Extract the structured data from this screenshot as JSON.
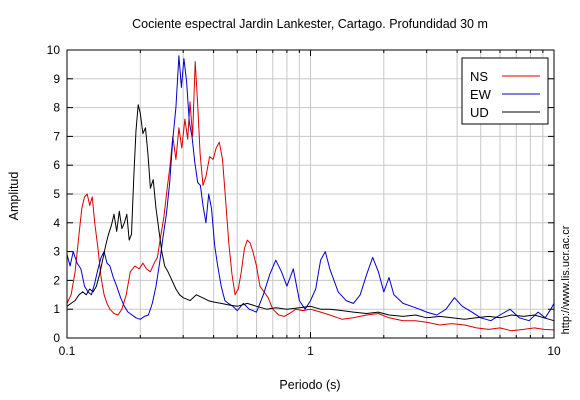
{
  "chart_data": {
    "type": "line",
    "title": "Cociente espectral Jardin Lankester, Cartago. Profundidad 30 m",
    "xlabel": "Periodo (s)",
    "ylabel": "Amplitud",
    "xscale": "log",
    "xlim": [
      0.1,
      10
    ],
    "ylim": [
      0,
      10
    ],
    "x_ticks": [
      {
        "value": 0.1,
        "label": "0.1"
      },
      {
        "value": 1,
        "label": "1"
      },
      {
        "value": 10,
        "label": "10"
      }
    ],
    "y_ticks": [
      {
        "value": 0,
        "label": "0"
      },
      {
        "value": 1,
        "label": "1"
      },
      {
        "value": 2,
        "label": "2"
      },
      {
        "value": 3,
        "label": "3"
      },
      {
        "value": 4,
        "label": "4"
      },
      {
        "value": 5,
        "label": "5"
      },
      {
        "value": 6,
        "label": "6"
      },
      {
        "value": 7,
        "label": "7"
      },
      {
        "value": 8,
        "label": "8"
      },
      {
        "value": 9,
        "label": "9"
      },
      {
        "value": 10,
        "label": "10"
      }
    ],
    "grid": true,
    "legend_position": "top-right",
    "side_note": "http://www.lis.ucr.ac.cr",
    "series": [
      {
        "name": "NS",
        "color": "#dd0000",
        "points": [
          [
            0.1,
            1.2
          ],
          [
            0.104,
            1.5
          ],
          [
            0.108,
            2.3
          ],
          [
            0.112,
            3.6
          ],
          [
            0.115,
            4.5
          ],
          [
            0.118,
            4.9
          ],
          [
            0.121,
            5.0
          ],
          [
            0.124,
            4.6
          ],
          [
            0.127,
            4.9
          ],
          [
            0.13,
            4.0
          ],
          [
            0.134,
            3.1
          ],
          [
            0.138,
            2.1
          ],
          [
            0.142,
            1.5
          ],
          [
            0.146,
            1.2
          ],
          [
            0.15,
            1.0
          ],
          [
            0.156,
            0.85
          ],
          [
            0.162,
            0.8
          ],
          [
            0.168,
            1.0
          ],
          [
            0.175,
            1.5
          ],
          [
            0.182,
            2.3
          ],
          [
            0.19,
            2.5
          ],
          [
            0.198,
            2.4
          ],
          [
            0.205,
            2.6
          ],
          [
            0.212,
            2.4
          ],
          [
            0.22,
            2.3
          ],
          [
            0.228,
            2.6
          ],
          [
            0.235,
            2.8
          ],
          [
            0.242,
            3.5
          ],
          [
            0.25,
            4.2
          ],
          [
            0.258,
            5.2
          ],
          [
            0.265,
            6.0
          ],
          [
            0.272,
            7.0
          ],
          [
            0.28,
            6.2
          ],
          [
            0.288,
            7.3
          ],
          [
            0.296,
            6.6
          ],
          [
            0.305,
            7.6
          ],
          [
            0.313,
            6.9
          ],
          [
            0.32,
            8.2
          ],
          [
            0.328,
            7.0
          ],
          [
            0.336,
            9.6
          ],
          [
            0.344,
            8.1
          ],
          [
            0.352,
            6.4
          ],
          [
            0.362,
            5.3
          ],
          [
            0.372,
            5.6
          ],
          [
            0.385,
            6.3
          ],
          [
            0.398,
            6.2
          ],
          [
            0.41,
            6.6
          ],
          [
            0.422,
            6.8
          ],
          [
            0.435,
            6.2
          ],
          [
            0.448,
            4.8
          ],
          [
            0.462,
            3.3
          ],
          [
            0.476,
            2.2
          ],
          [
            0.49,
            1.5
          ],
          [
            0.505,
            1.7
          ],
          [
            0.52,
            2.3
          ],
          [
            0.535,
            3.1
          ],
          [
            0.55,
            3.4
          ],
          [
            0.565,
            3.3
          ],
          [
            0.58,
            3.0
          ],
          [
            0.6,
            2.5
          ],
          [
            0.62,
            1.8
          ],
          [
            0.645,
            1.6
          ],
          [
            0.67,
            1.4
          ],
          [
            0.7,
            1.0
          ],
          [
            0.74,
            0.8
          ],
          [
            0.78,
            0.75
          ],
          [
            0.82,
            0.85
          ],
          [
            0.87,
            1.0
          ],
          [
            0.93,
            0.95
          ],
          [
            1.0,
            1.0
          ],
          [
            1.1,
            0.9
          ],
          [
            1.2,
            0.8
          ],
          [
            1.35,
            0.65
          ],
          [
            1.5,
            0.7
          ],
          [
            1.7,
            0.8
          ],
          [
            1.9,
            0.85
          ],
          [
            2.1,
            0.7
          ],
          [
            2.4,
            0.6
          ],
          [
            2.7,
            0.6
          ],
          [
            3.0,
            0.55
          ],
          [
            3.4,
            0.45
          ],
          [
            3.8,
            0.5
          ],
          [
            4.3,
            0.45
          ],
          [
            4.8,
            0.35
          ],
          [
            5.4,
            0.3
          ],
          [
            6.0,
            0.35
          ],
          [
            6.7,
            0.25
          ],
          [
            7.5,
            0.3
          ],
          [
            8.3,
            0.35
          ],
          [
            9.1,
            0.3
          ],
          [
            10.0,
            0.28
          ]
        ]
      },
      {
        "name": "EW",
        "color": "#0000cc",
        "points": [
          [
            0.1,
            2.9
          ],
          [
            0.103,
            2.5
          ],
          [
            0.106,
            3.0
          ],
          [
            0.11,
            2.6
          ],
          [
            0.114,
            2.4
          ],
          [
            0.118,
            1.8
          ],
          [
            0.122,
            1.6
          ],
          [
            0.126,
            1.5
          ],
          [
            0.13,
            1.9
          ],
          [
            0.134,
            2.4
          ],
          [
            0.138,
            2.8
          ],
          [
            0.142,
            3.0
          ],
          [
            0.146,
            2.6
          ],
          [
            0.15,
            2.5
          ],
          [
            0.155,
            2.1
          ],
          [
            0.16,
            1.8
          ],
          [
            0.166,
            1.4
          ],
          [
            0.172,
            1.1
          ],
          [
            0.178,
            0.9
          ],
          [
            0.185,
            0.8
          ],
          [
            0.192,
            0.7
          ],
          [
            0.2,
            0.65
          ],
          [
            0.208,
            0.75
          ],
          [
            0.216,
            0.8
          ],
          [
            0.224,
            1.2
          ],
          [
            0.232,
            1.8
          ],
          [
            0.24,
            2.6
          ],
          [
            0.248,
            3.5
          ],
          [
            0.256,
            4.3
          ],
          [
            0.264,
            5.4
          ],
          [
            0.272,
            6.9
          ],
          [
            0.28,
            8.0
          ],
          [
            0.288,
            9.8
          ],
          [
            0.295,
            8.7
          ],
          [
            0.302,
            9.7
          ],
          [
            0.31,
            8.9
          ],
          [
            0.318,
            7.5
          ],
          [
            0.326,
            7.0
          ],
          [
            0.335,
            6.1
          ],
          [
            0.344,
            5.4
          ],
          [
            0.353,
            5.3
          ],
          [
            0.362,
            4.6
          ],
          [
            0.372,
            4.0
          ],
          [
            0.382,
            5.0
          ],
          [
            0.392,
            4.5
          ],
          [
            0.404,
            3.2
          ],
          [
            0.416,
            2.5
          ],
          [
            0.43,
            1.8
          ],
          [
            0.445,
            1.3
          ],
          [
            0.46,
            1.2
          ],
          [
            0.48,
            1.1
          ],
          [
            0.5,
            0.95
          ],
          [
            0.53,
            1.2
          ],
          [
            0.56,
            1.0
          ],
          [
            0.6,
            0.9
          ],
          [
            0.64,
            1.5
          ],
          [
            0.68,
            2.2
          ],
          [
            0.72,
            2.7
          ],
          [
            0.76,
            2.3
          ],
          [
            0.8,
            1.8
          ],
          [
            0.85,
            2.4
          ],
          [
            0.9,
            1.3
          ],
          [
            0.95,
            1.0
          ],
          [
            1.0,
            1.3
          ],
          [
            1.05,
            1.7
          ],
          [
            1.1,
            2.7
          ],
          [
            1.15,
            3.0
          ],
          [
            1.2,
            2.4
          ],
          [
            1.3,
            1.6
          ],
          [
            1.4,
            1.3
          ],
          [
            1.5,
            1.2
          ],
          [
            1.6,
            1.5
          ],
          [
            1.7,
            2.2
          ],
          [
            1.8,
            2.8
          ],
          [
            1.9,
            2.3
          ],
          [
            2.0,
            1.6
          ],
          [
            2.1,
            2.1
          ],
          [
            2.2,
            1.5
          ],
          [
            2.4,
            1.2
          ],
          [
            2.6,
            1.1
          ],
          [
            2.8,
            1.0
          ],
          [
            3.0,
            0.9
          ],
          [
            3.3,
            0.8
          ],
          [
            3.6,
            1.0
          ],
          [
            3.9,
            1.4
          ],
          [
            4.2,
            1.1
          ],
          [
            4.6,
            0.9
          ],
          [
            5.0,
            0.7
          ],
          [
            5.5,
            0.6
          ],
          [
            6.0,
            0.8
          ],
          [
            6.6,
            1.0
          ],
          [
            7.2,
            0.7
          ],
          [
            7.9,
            0.6
          ],
          [
            8.6,
            0.9
          ],
          [
            9.2,
            0.7
          ],
          [
            9.7,
            1.0
          ],
          [
            10.0,
            1.2
          ]
        ]
      },
      {
        "name": "UD",
        "color": "#000000",
        "points": [
          [
            0.1,
            1.1
          ],
          [
            0.104,
            1.2
          ],
          [
            0.108,
            1.3
          ],
          [
            0.112,
            1.5
          ],
          [
            0.116,
            1.6
          ],
          [
            0.12,
            1.5
          ],
          [
            0.124,
            1.7
          ],
          [
            0.128,
            1.6
          ],
          [
            0.132,
            1.8
          ],
          [
            0.136,
            2.2
          ],
          [
            0.14,
            2.7
          ],
          [
            0.144,
            3.2
          ],
          [
            0.148,
            3.6
          ],
          [
            0.152,
            3.9
          ],
          [
            0.156,
            4.3
          ],
          [
            0.16,
            3.7
          ],
          [
            0.164,
            4.4
          ],
          [
            0.168,
            3.8
          ],
          [
            0.172,
            4.0
          ],
          [
            0.176,
            4.3
          ],
          [
            0.18,
            3.4
          ],
          [
            0.184,
            3.6
          ],
          [
            0.188,
            5.6
          ],
          [
            0.192,
            7.2
          ],
          [
            0.196,
            8.1
          ],
          [
            0.2,
            7.8
          ],
          [
            0.205,
            7.1
          ],
          [
            0.21,
            7.3
          ],
          [
            0.215,
            6.4
          ],
          [
            0.22,
            5.2
          ],
          [
            0.226,
            5.5
          ],
          [
            0.232,
            4.5
          ],
          [
            0.238,
            3.8
          ],
          [
            0.245,
            3.0
          ],
          [
            0.252,
            2.5
          ],
          [
            0.26,
            2.3
          ],
          [
            0.27,
            2.0
          ],
          [
            0.28,
            1.7
          ],
          [
            0.29,
            1.5
          ],
          [
            0.3,
            1.4
          ],
          [
            0.32,
            1.3
          ],
          [
            0.34,
            1.5
          ],
          [
            0.36,
            1.4
          ],
          [
            0.38,
            1.3
          ],
          [
            0.4,
            1.25
          ],
          [
            0.43,
            1.2
          ],
          [
            0.46,
            1.15
          ],
          [
            0.5,
            1.1
          ],
          [
            0.55,
            1.2
          ],
          [
            0.6,
            1.1
          ],
          [
            0.66,
            1.0
          ],
          [
            0.72,
            1.05
          ],
          [
            0.8,
            1.0
          ],
          [
            0.9,
            1.05
          ],
          [
            1.0,
            1.1
          ],
          [
            1.1,
            1.0
          ],
          [
            1.2,
            1.0
          ],
          [
            1.35,
            0.95
          ],
          [
            1.5,
            0.9
          ],
          [
            1.7,
            0.85
          ],
          [
            1.9,
            0.9
          ],
          [
            2.1,
            0.8
          ],
          [
            2.4,
            0.75
          ],
          [
            2.7,
            0.8
          ],
          [
            3.0,
            0.7
          ],
          [
            3.4,
            0.75
          ],
          [
            3.8,
            0.7
          ],
          [
            4.3,
            0.65
          ],
          [
            4.8,
            0.7
          ],
          [
            5.4,
            0.75
          ],
          [
            6.0,
            0.7
          ],
          [
            6.7,
            0.8
          ],
          [
            7.5,
            0.75
          ],
          [
            8.3,
            0.8
          ],
          [
            9.1,
            0.7
          ],
          [
            10.0,
            0.6
          ]
        ]
      }
    ]
  }
}
